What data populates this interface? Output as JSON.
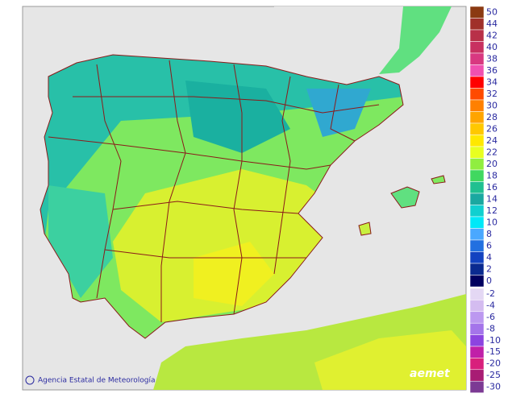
{
  "footer": {
    "credit": "Agencia Estatal de Meteorología",
    "logo": "aemet"
  },
  "legend": {
    "warm": {
      "labels": [
        50,
        44,
        42,
        40,
        38,
        36,
        34,
        32,
        30,
        28,
        26,
        24,
        22,
        20,
        18,
        16,
        14,
        12,
        10,
        8,
        6,
        4,
        2,
        0
      ],
      "colors": [
        "#8b3a12",
        "#a0302a",
        "#b83048",
        "#c83060",
        "#d83880",
        "#f050b0",
        "#ff0000",
        "#ff4a00",
        "#ff8000",
        "#ffa400",
        "#ffc800",
        "#ffe800",
        "#e8ff20",
        "#90ee40",
        "#40d860",
        "#20c090",
        "#1aa8a0",
        "#10d0d0",
        "#00e8f8",
        "#4aa8ff",
        "#2270e0",
        "#1242c0",
        "#0a2a90",
        "#000060"
      ]
    },
    "cold": {
      "labels": [
        -2,
        -4,
        -6,
        -8,
        -10,
        -15,
        -20,
        -25,
        -30
      ],
      "colors": [
        "#e4d8f4",
        "#d4bcf0",
        "#bc98f0",
        "#a474ea",
        "#8c44e0",
        "#c020a8",
        "#d8207c",
        "#a81c74",
        "#7c3a94"
      ]
    }
  }
}
